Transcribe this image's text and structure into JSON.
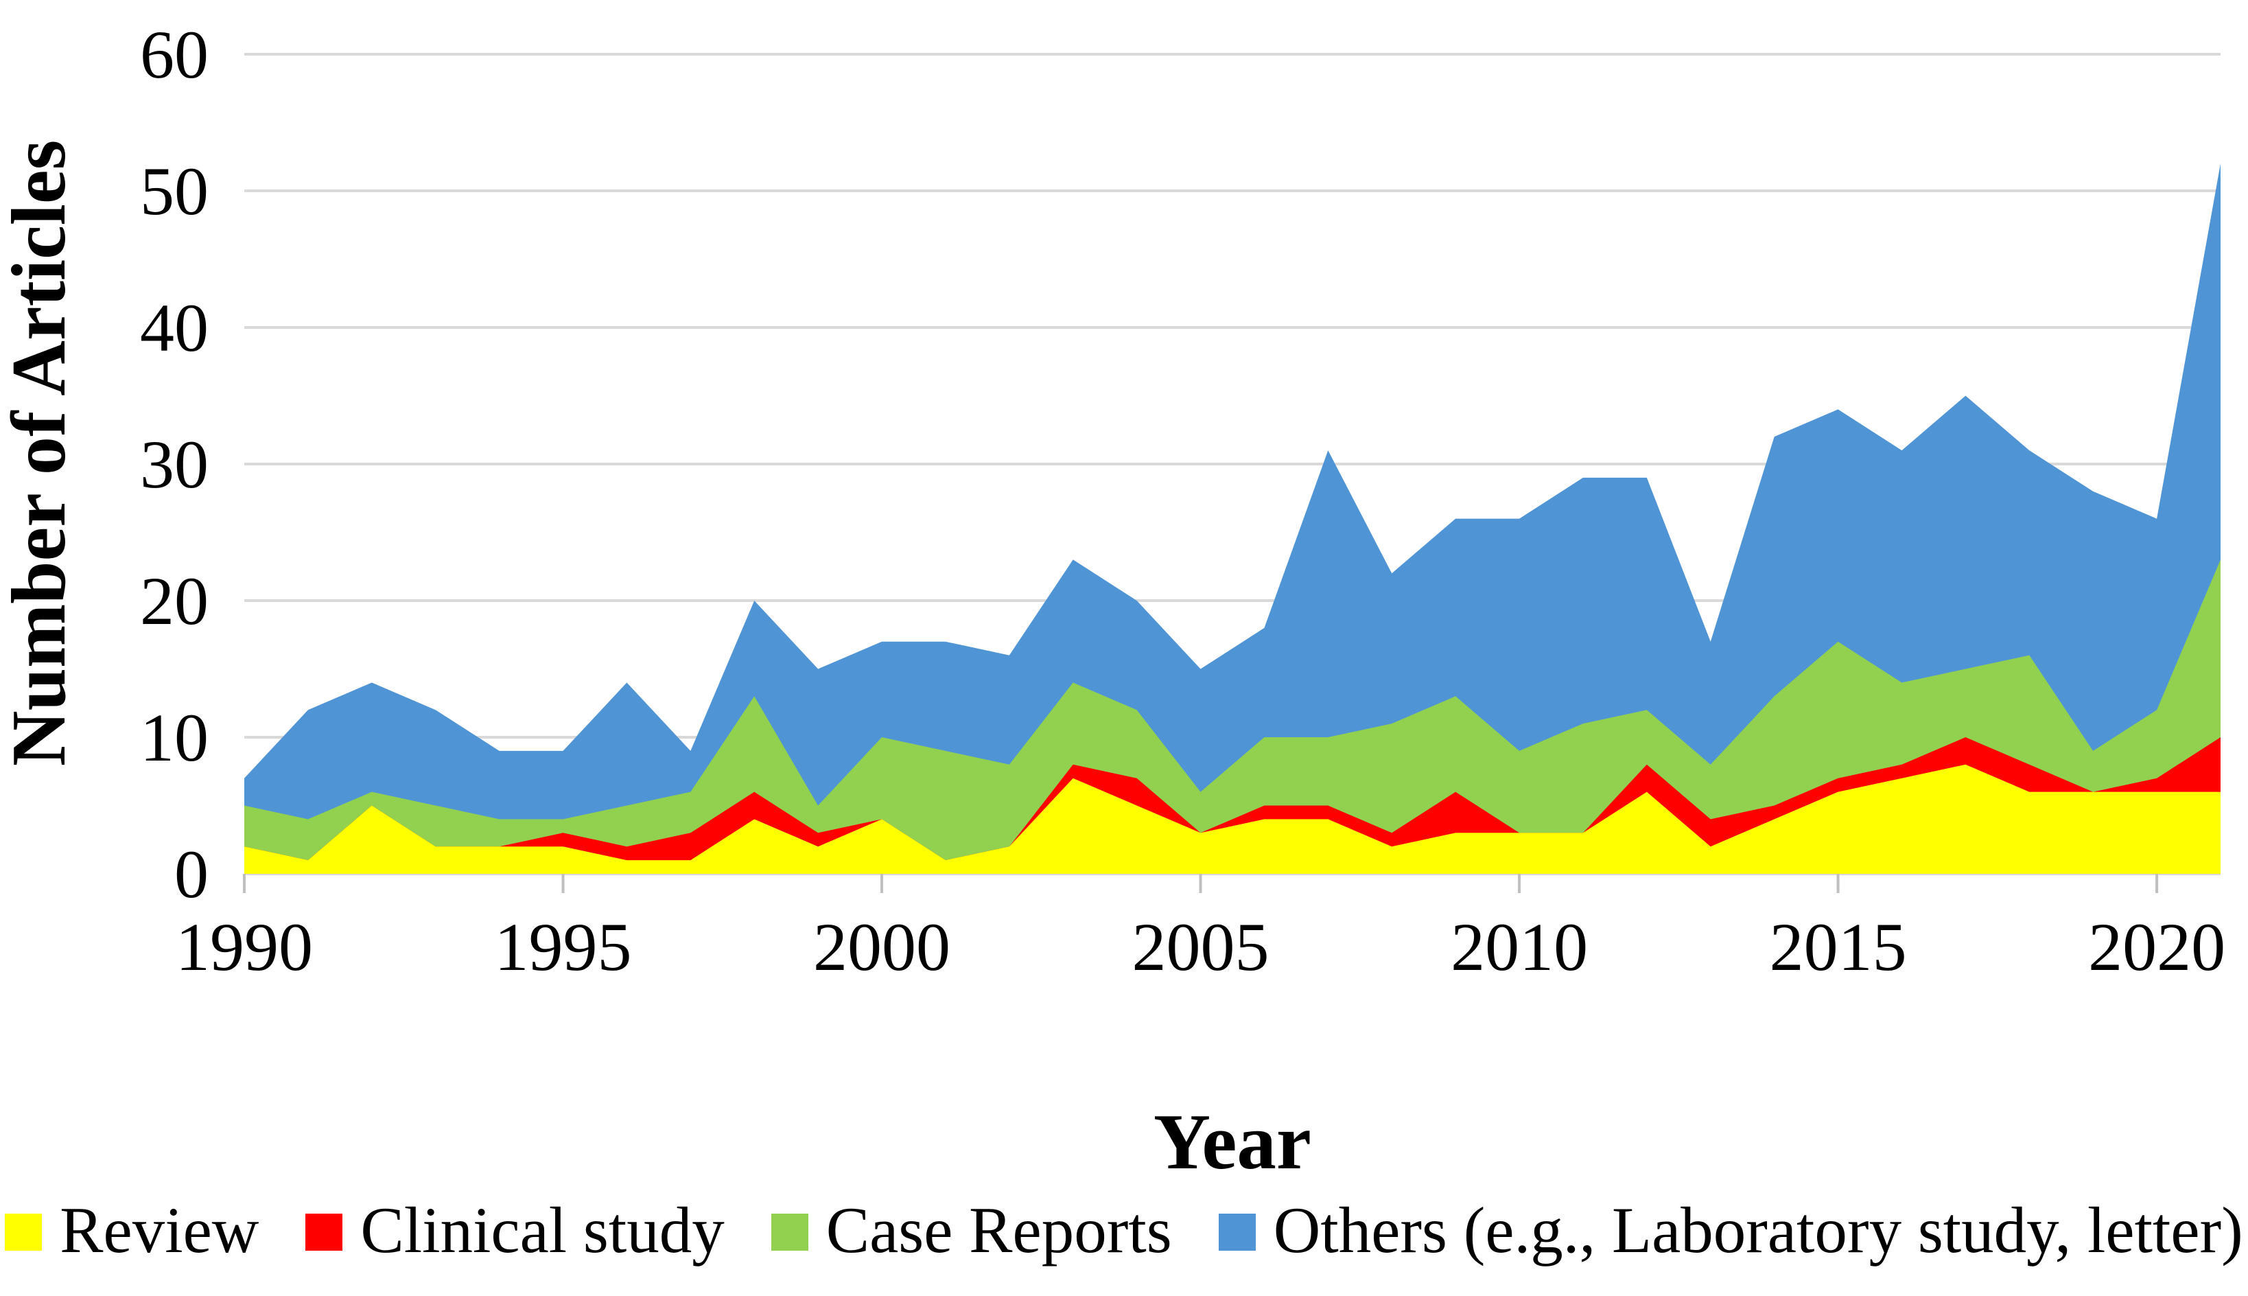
{
  "chart_data": {
    "type": "area",
    "stacked": true,
    "title": "",
    "xlabel": "Year",
    "ylabel": "Number of Articles",
    "x": [
      1990,
      1991,
      1992,
      1993,
      1994,
      1995,
      1996,
      1997,
      1998,
      1999,
      2000,
      2001,
      2002,
      2003,
      2004,
      2005,
      2006,
      2007,
      2008,
      2009,
      2010,
      2011,
      2012,
      2013,
      2014,
      2015,
      2016,
      2017,
      2018,
      2019,
      2020,
      2021
    ],
    "series": [
      {
        "name": "Review",
        "color": "#FFFF00",
        "values": [
          2,
          1,
          5,
          2,
          2,
          2,
          1,
          1,
          4,
          2,
          4,
          1,
          2,
          7,
          5,
          3,
          4,
          4,
          2,
          3,
          3,
          3,
          6,
          2,
          4,
          6,
          7,
          8,
          6,
          6,
          6,
          6
        ]
      },
      {
        "name": "Clinical study",
        "color": "#FE0000",
        "values": [
          0,
          0,
          0,
          0,
          0,
          1,
          1,
          2,
          2,
          1,
          0,
          0,
          0,
          1,
          2,
          0,
          1,
          1,
          1,
          3,
          0,
          0,
          2,
          2,
          1,
          1,
          1,
          2,
          2,
          0,
          1,
          4
        ]
      },
      {
        "name": "Case Reports",
        "color": "#92D050",
        "values": [
          3,
          3,
          1,
          3,
          2,
          1,
          3,
          3,
          7,
          2,
          6,
          8,
          6,
          6,
          5,
          3,
          5,
          5,
          8,
          7,
          6,
          8,
          4,
          4,
          8,
          10,
          6,
          5,
          8,
          3,
          5,
          13
        ]
      },
      {
        "name": "Others (e.g., Laboratory study, letter)",
        "color": "#4F94D4",
        "values": [
          2,
          8,
          8,
          7,
          5,
          5,
          9,
          3,
          7,
          10,
          7,
          8,
          8,
          9,
          8,
          9,
          8,
          21,
          11,
          13,
          17,
          18,
          17,
          9,
          19,
          17,
          17,
          20,
          15,
          19,
          14,
          29
        ]
      }
    ],
    "ylim": [
      0,
      60
    ],
    "y_ticks": [
      0,
      10,
      20,
      30,
      40,
      50,
      60
    ],
    "x_tick_labels": [
      1990,
      1995,
      2000,
      2005,
      2010,
      2015,
      2020
    ],
    "grid": true,
    "legend_position": "bottom",
    "gridline_color": "#D9D9D9",
    "tick_color": "#BFBFBF",
    "text_color": "#000000",
    "background": "#FFFFFF"
  }
}
